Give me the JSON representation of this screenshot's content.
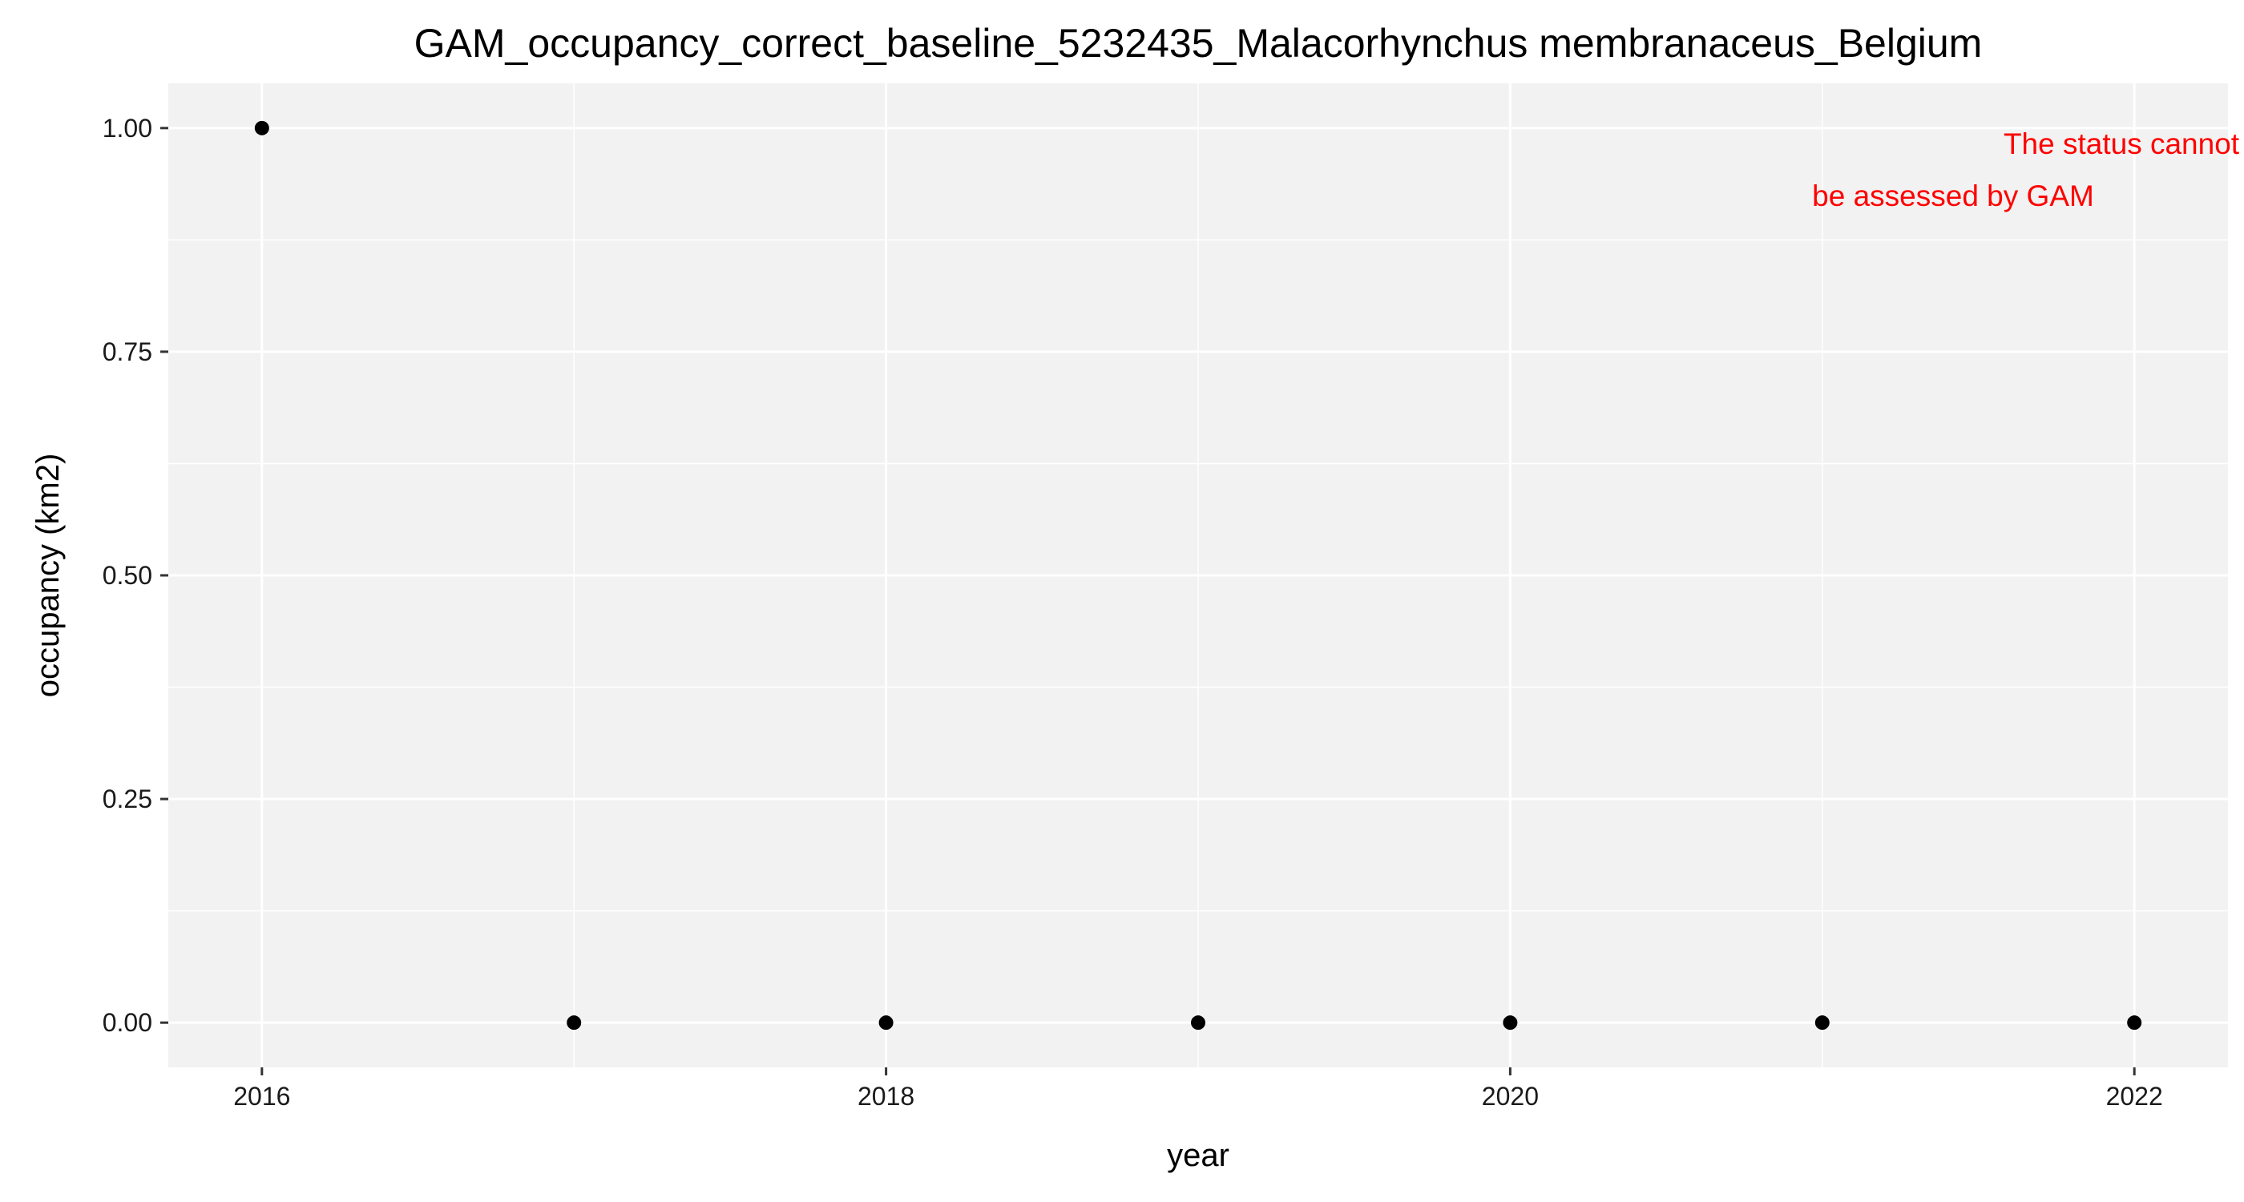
{
  "chart_data": {
    "type": "scatter",
    "title": "GAM_occupancy_correct_baseline_5232435_Malacorhynchus membranaceus_Belgium",
    "xlabel": "year",
    "ylabel": "occupancy (km2)",
    "x": [
      2016,
      2017,
      2018,
      2019,
      2020,
      2021,
      2022
    ],
    "y": [
      1.0,
      0.0,
      0.0,
      0.0,
      0.0,
      0.0,
      0.0
    ],
    "xlim": [
      2015.7,
      2022.3
    ],
    "ylim": [
      -0.05,
      1.05
    ],
    "x_ticks": [
      2016,
      2018,
      2020,
      2022
    ],
    "x_tick_labels": [
      "2016",
      "2018",
      "2020",
      "2022"
    ],
    "y_ticks": [
      0,
      0.25,
      0.5,
      0.75,
      1.0
    ],
    "y_tick_labels": [
      "0.00",
      "0.25",
      "0.50",
      "0.75",
      "1.00"
    ],
    "annotation": {
      "lines": [
        "The status cannot",
        "be assessed by GAM"
      ],
      "color": "#ff0000",
      "placement": "top-right"
    },
    "panel_background": "#f2f2f2",
    "grid_color": "#ffffff",
    "point_color": "#000000",
    "grid": true,
    "legend": "none"
  }
}
